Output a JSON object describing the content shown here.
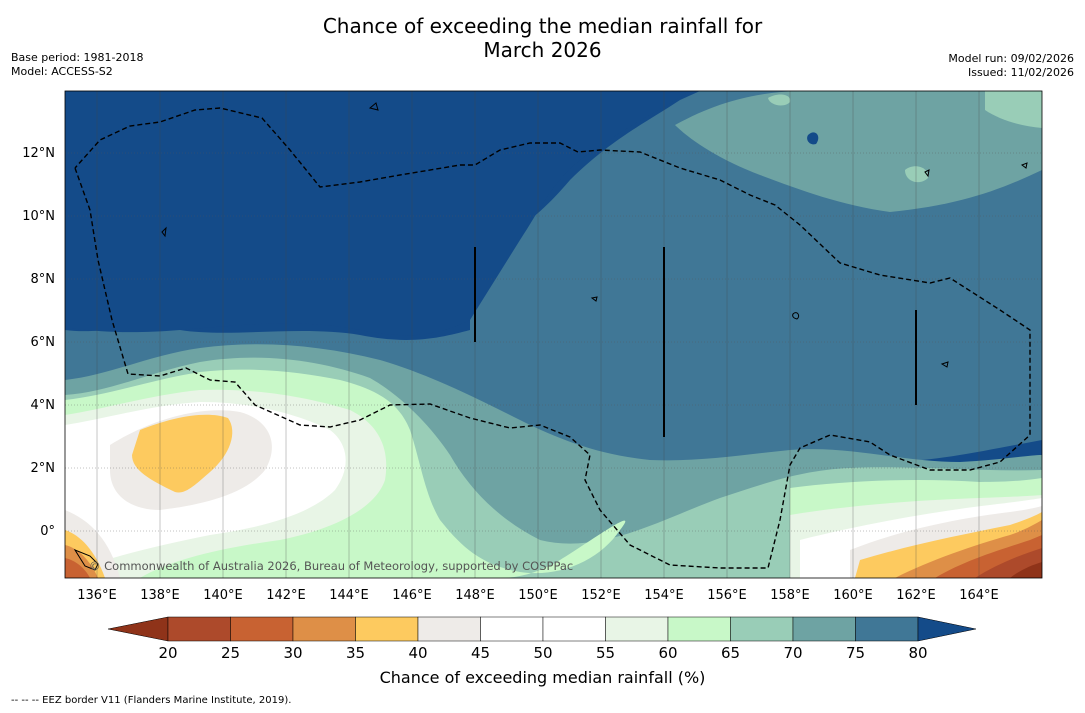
{
  "title_line1": "Chance of exceeding the median rainfall for",
  "title_line2": "March 2026",
  "base_period": "Base period: 1981-2018",
  "model": "Model: ACCESS-S2",
  "model_run": "Model run: 09/02/2026",
  "issued": "Issued: 11/02/2026",
  "copyright": "© Commonwealth of Australia 2026, Bureau of Meteorology, supported by COSPPac",
  "lat_labels": [
    "12°N",
    "10°N",
    "8°N",
    "6°N",
    "4°N",
    "2°N",
    "0°"
  ],
  "lon_labels": [
    "136°E",
    "138°E",
    "140°E",
    "142°E",
    "144°E",
    "146°E",
    "148°E",
    "150°E",
    "152°E",
    "154°E",
    "156°E",
    "158°E",
    "160°E",
    "162°E",
    "164°E"
  ],
  "colorbar": {
    "title": "Chance of exceeding median rainfall (%)",
    "ticks": [
      "20",
      "25",
      "30",
      "35",
      "40",
      "45",
      "50",
      "55",
      "60",
      "65",
      "70",
      "75",
      "80"
    ],
    "colors": {
      "below20": "#8f3319",
      "c20_25": "#ad4a2b",
      "c25_30": "#c86232",
      "c30_35": "#de8f47",
      "c35_40": "#fdca5f",
      "c40_45": "#eeebe8",
      "c45_50": "#ffffff",
      "c50_55": "#ffffff",
      "c55_60": "#e8f5e6",
      "c60_65": "#c8f8c8",
      "c65_70": "#99cdb7",
      "c70_75": "#6ea3a3",
      "c75_80": "#407796",
      "above80": "#144b89"
    }
  },
  "legend_note": "--  --  -- EEZ border V11 (Flanders Marine Institute, 2019)."
}
